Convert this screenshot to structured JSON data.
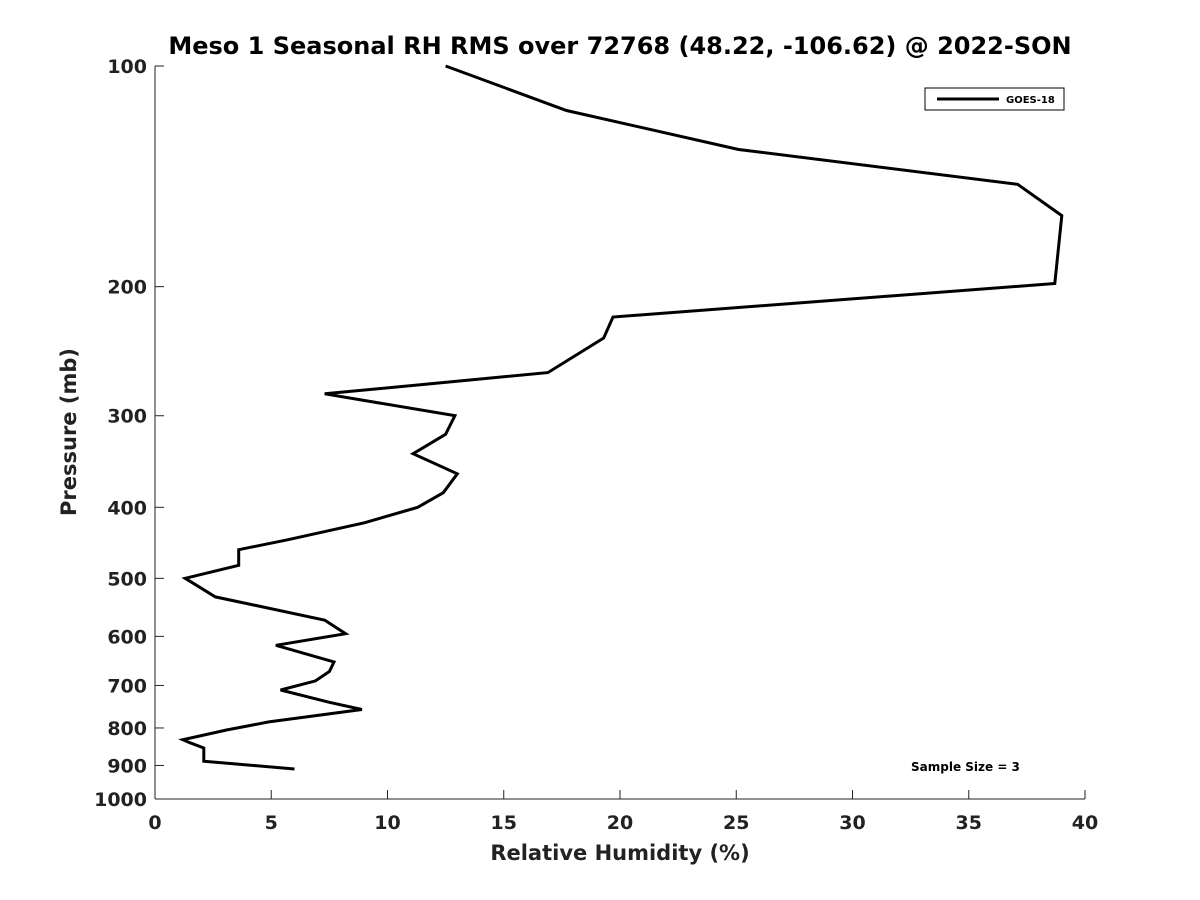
{
  "chart_data": {
    "type": "line",
    "title": "Meso 1 Seasonal RH RMS over 72768 (48.22, -106.62) @ 2022-SON",
    "xlabel": "Relative Humidity (%)",
    "ylabel": "Pressure (mb)",
    "xlim": [
      0,
      40
    ],
    "ylim": [
      100,
      1000
    ],
    "y_scale": "log",
    "y_direction": "reversed",
    "x_ticks": [
      "0",
      "5",
      "10",
      "15",
      "20",
      "25",
      "30",
      "35",
      "40"
    ],
    "y_ticks": [
      "100",
      "200",
      "300",
      "400",
      "500",
      "600",
      "700",
      "800",
      "900",
      "1000"
    ],
    "grid": false,
    "legend_position": "top-right",
    "series": [
      {
        "name": "GOES-18",
        "color": "#000000",
        "x": [
          12.5,
          17.7,
          25.1,
          37.1,
          39.0,
          38.7,
          19.7,
          19.3,
          16.9,
          7.3,
          12.9,
          12.5,
          11.1,
          13.0,
          12.4,
          11.3,
          9.0,
          5.7,
          3.6,
          3.6,
          1.3,
          2.6,
          7.3,
          8.2,
          5.2,
          7.7,
          7.5,
          6.9,
          5.4,
          7.5,
          8.9,
          4.9,
          3.1,
          1.8,
          1.2,
          1.5,
          2.1,
          2.1,
          2.1,
          6.0
        ],
        "y": [
          100,
          115,
          130,
          145,
          160,
          198,
          220,
          235,
          262,
          280,
          300,
          318,
          338,
          360,
          382,
          400,
          420,
          443,
          457,
          480,
          500,
          530,
          570,
          595,
          617,
          650,
          670,
          690,
          710,
          738,
          755,
          785,
          805,
          822,
          830,
          838,
          852,
          868,
          888,
          910
        ]
      }
    ],
    "annotations": [
      "Sample Size = 3"
    ]
  }
}
